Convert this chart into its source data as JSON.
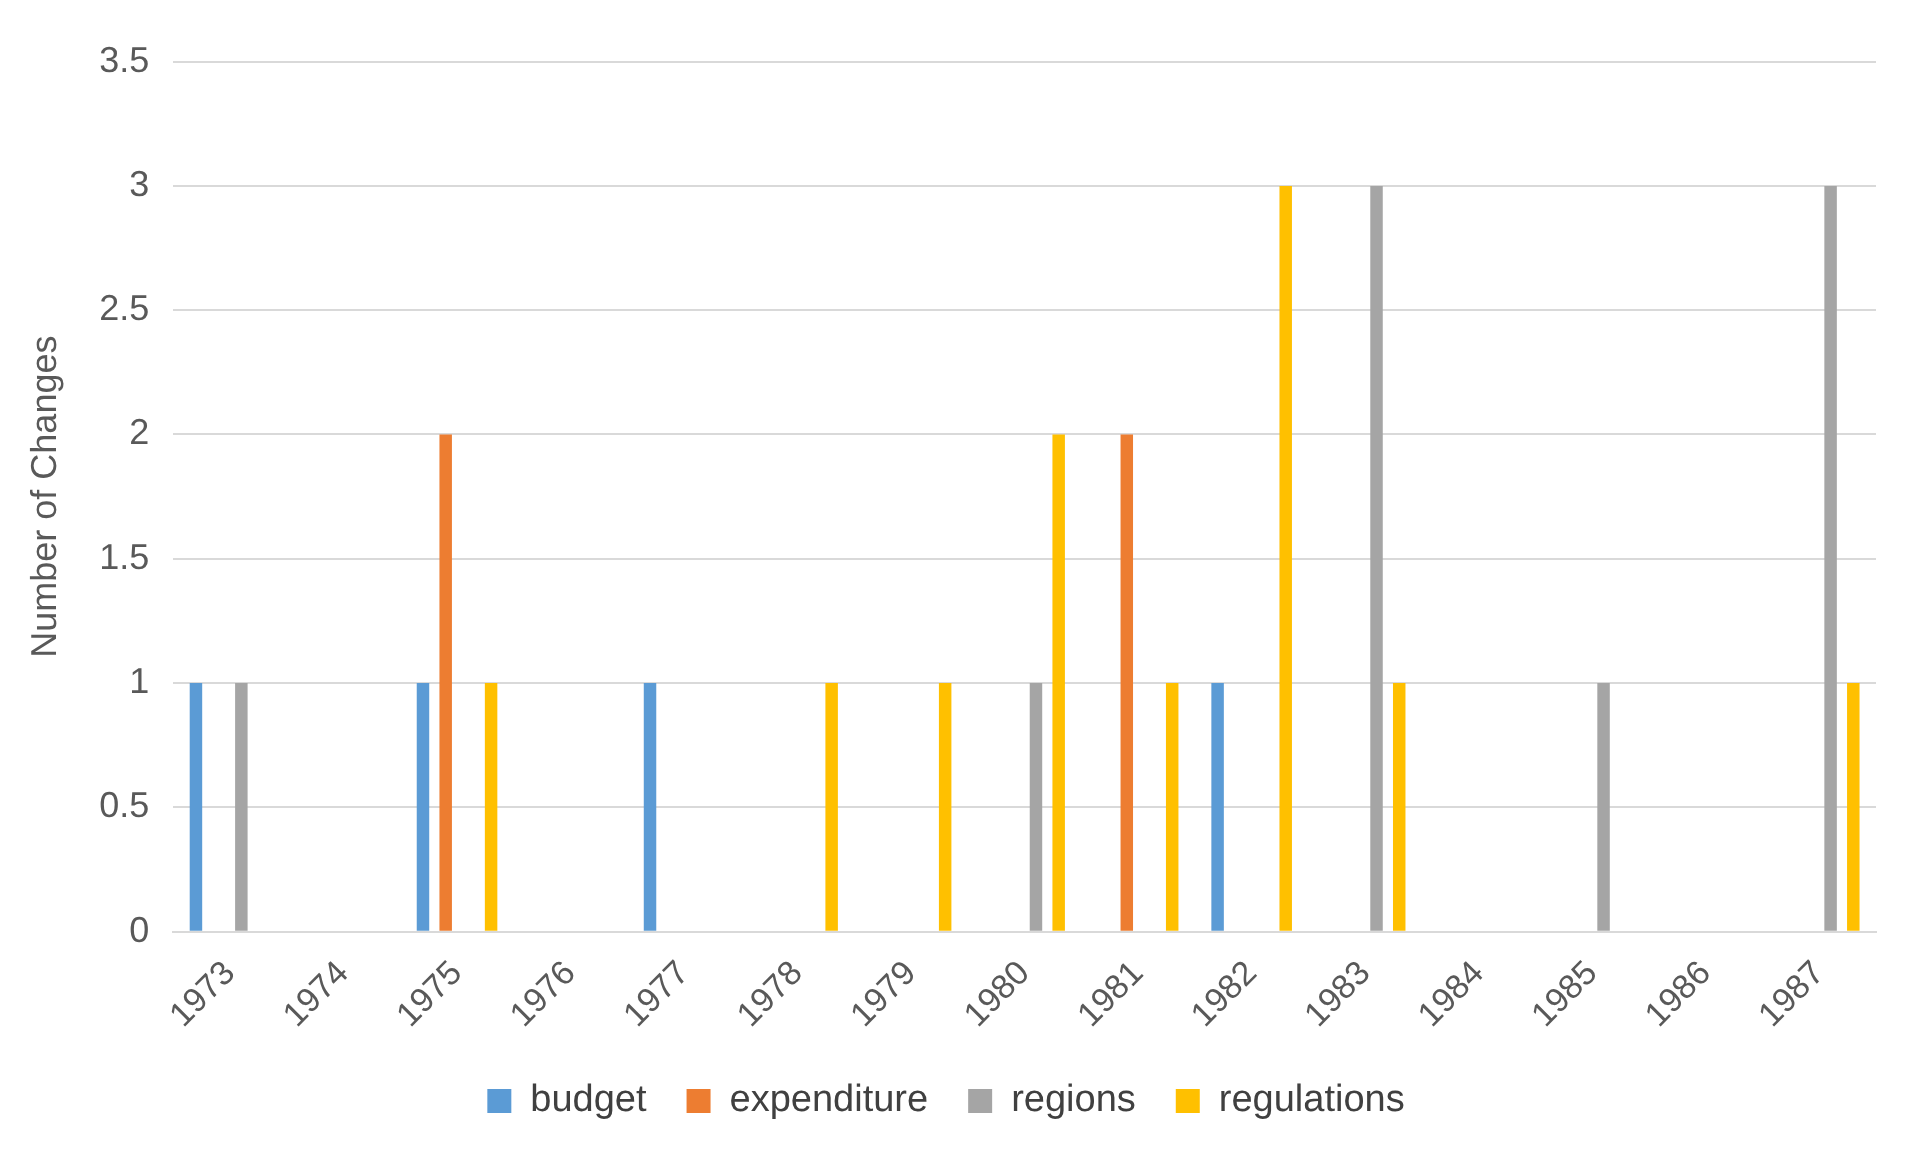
{
  "chart_data": {
    "type": "bar",
    "ylabel": "Number of Changes",
    "categories": [
      "1973",
      "1974",
      "1975",
      "1976",
      "1977",
      "1978",
      "1979",
      "1980",
      "1981",
      "1982",
      "1983",
      "1984",
      "1985",
      "1986",
      "1987"
    ],
    "series": [
      {
        "name": "budget",
        "color": "#5b9bd5",
        "values": [
          1,
          0,
          1,
          0,
          1,
          0,
          0,
          0,
          0,
          1,
          0,
          0,
          0,
          0,
          0
        ]
      },
      {
        "name": "expenditure",
        "color": "#ed7d31",
        "values": [
          0,
          0,
          2,
          0,
          0,
          0,
          0,
          0,
          2,
          0,
          0,
          0,
          0,
          0,
          0
        ]
      },
      {
        "name": "regions",
        "color": "#a5a5a5",
        "values": [
          1,
          0,
          0,
          0,
          0,
          0,
          0,
          1,
          0,
          0,
          3,
          0,
          1,
          0,
          3
        ]
      },
      {
        "name": "regulations",
        "color": "#ffc000",
        "values": [
          0,
          0,
          1,
          0,
          0,
          1,
          1,
          2,
          1,
          3,
          1,
          0,
          0,
          0,
          1
        ]
      }
    ],
    "ylim": [
      0,
      3.5
    ],
    "yticks": [
      0,
      0.5,
      1,
      1.5,
      2,
      2.5,
      3,
      3.5
    ],
    "grid": "y",
    "legend": "bottom"
  }
}
